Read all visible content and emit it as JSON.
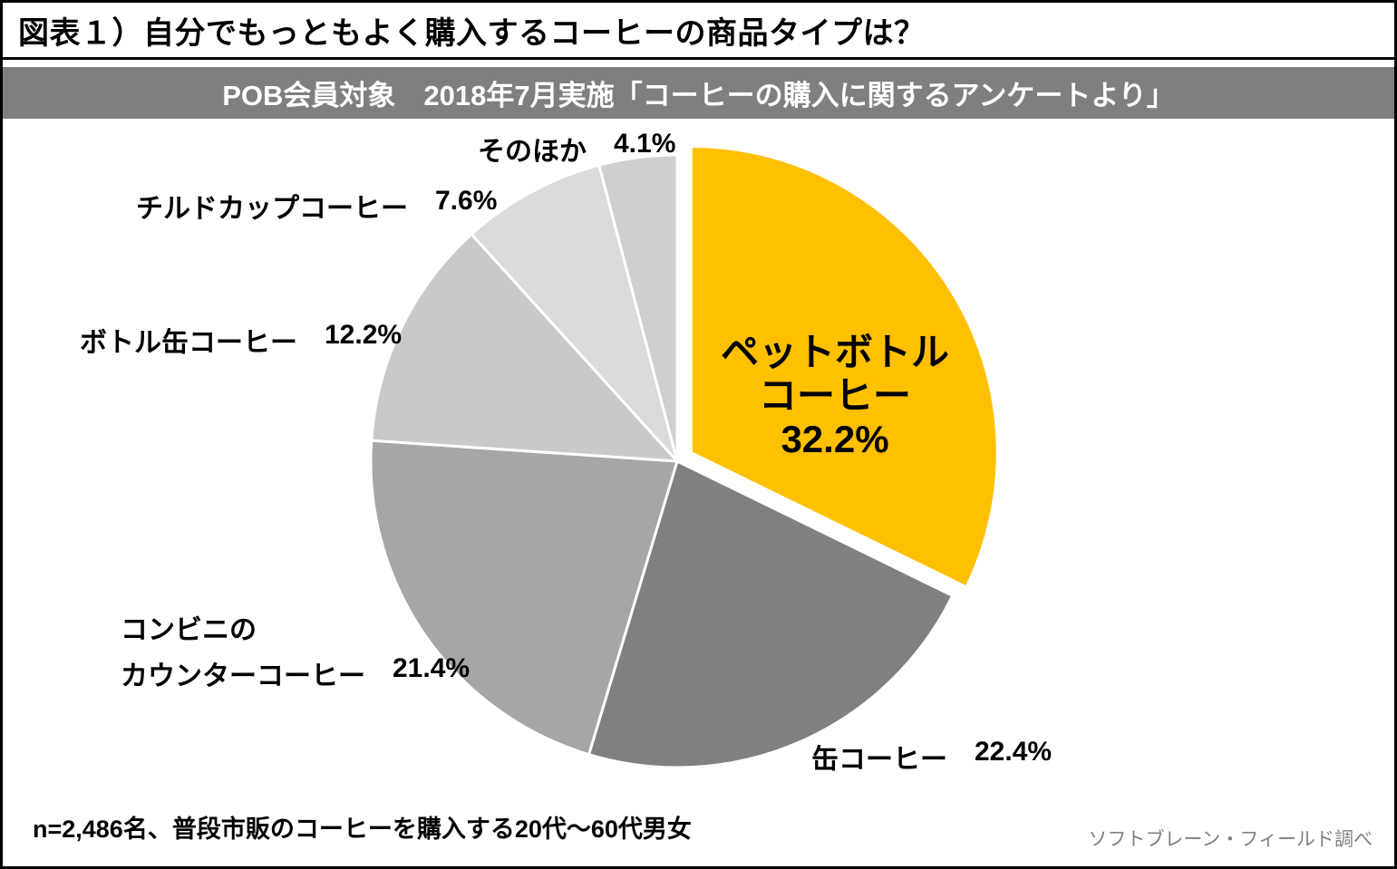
{
  "header": {
    "title": "図表１）自分でもっともよく購入するコーヒーの商品タイプは？",
    "banner": "POB会員対象　2018年7月実施「コーヒーの購入に関するアンケートより」"
  },
  "footer": {
    "sample_note": "n=2,486名、普段市販のコーヒーを購入する20代～60代男女",
    "credit": "ソフトブレーン・フィールド調べ"
  },
  "chart_data": {
    "type": "pie",
    "title": "自分でもっともよく購入するコーヒーの商品タイプは？",
    "categories": [
      "ペットボトルコーヒー",
      "缶コーヒー",
      "コンビニのカウンターコーヒー",
      "ボトル缶コーヒー",
      "チルドカップコーヒー",
      "そのほか"
    ],
    "values": [
      32.2,
      22.4,
      21.4,
      12.2,
      7.6,
      4.1
    ],
    "unit": "%",
    "colors": [
      "#FFC000",
      "#808080",
      "#A6A6A6",
      "#C9C9C9",
      "#DBDBDB",
      "#CFCFCF"
    ],
    "start_angle": 0,
    "direction": "clockwise",
    "exploded_slice": "ペットボトルコーヒー",
    "legend": "none",
    "labels": {
      "center": {
        "lines": [
          "ペットボトル",
          "コーヒー",
          "32.2%"
        ]
      },
      "can": {
        "name": "缶コーヒー",
        "pct": "22.4%"
      },
      "convenience": {
        "line1": "コンビニの",
        "line2": "カウンターコーヒー",
        "pct": "21.4%"
      },
      "bottle_can": {
        "name": "ボトル缶コーヒー",
        "pct": "12.2%"
      },
      "chilled": {
        "name": "チルドカップコーヒー",
        "pct": "7.6%"
      },
      "other": {
        "name": "そのほか",
        "pct": "4.1%"
      }
    }
  }
}
